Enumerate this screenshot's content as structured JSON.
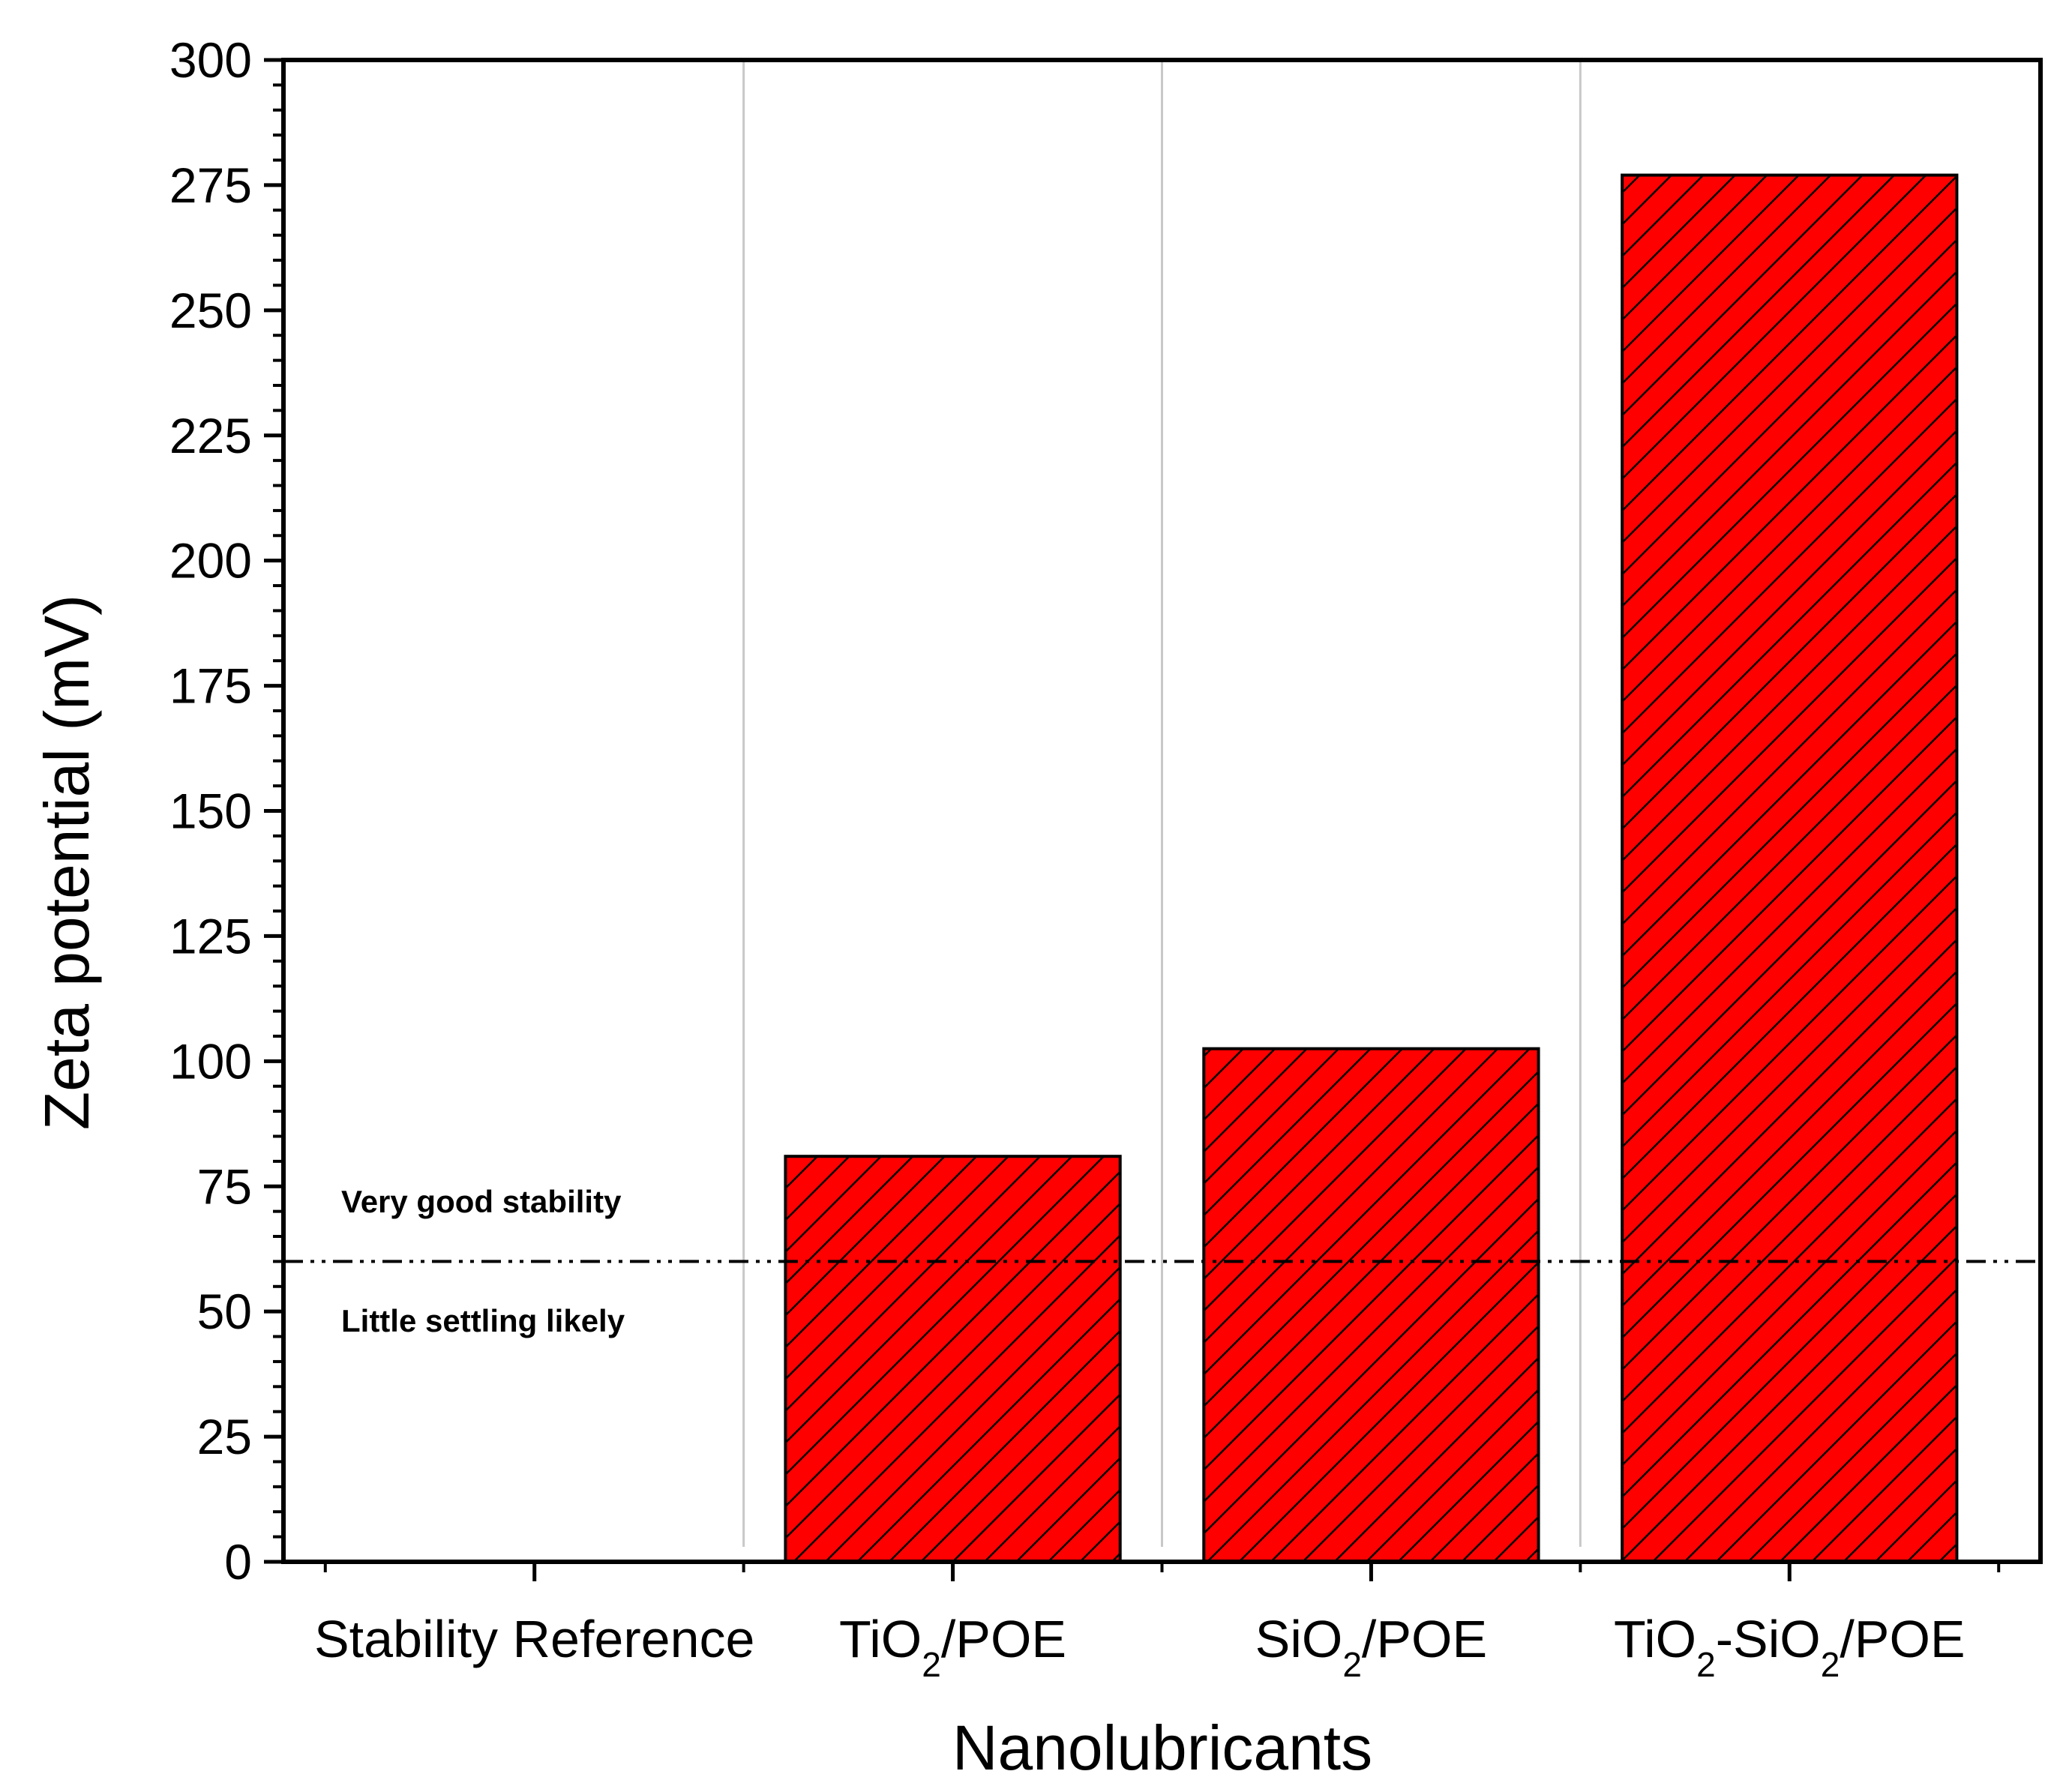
{
  "chart_data": {
    "type": "bar",
    "xlabel": "Nanolubricants",
    "ylabel": "Zeta potential (mV)",
    "ylim": [
      0,
      300
    ],
    "y_major_ticks": [
      0,
      25,
      50,
      75,
      100,
      125,
      150,
      175,
      200,
      225,
      250,
      275,
      300
    ],
    "y_minor_step": 5,
    "categories": [
      {
        "id": "ref",
        "parts": [
          {
            "t": "Stability Reference",
            "sub": false
          }
        ]
      },
      {
        "id": "tio2",
        "parts": [
          {
            "t": "TiO",
            "sub": false
          },
          {
            "t": "2",
            "sub": true
          },
          {
            "t": "/POE",
            "sub": false
          }
        ]
      },
      {
        "id": "sio2",
        "parts": [
          {
            "t": "SiO",
            "sub": false
          },
          {
            "t": "2",
            "sub": true
          },
          {
            "t": "/POE",
            "sub": false
          }
        ]
      },
      {
        "id": "tio2-sio2",
        "parts": [
          {
            "t": "TiO",
            "sub": false
          },
          {
            "t": "2",
            "sub": true
          },
          {
            "t": "-SiO",
            "sub": false
          },
          {
            "t": "2",
            "sub": true
          },
          {
            "t": "/POE",
            "sub": false
          }
        ]
      }
    ],
    "values": [
      null,
      81,
      102.5,
      277
    ],
    "bar_color": "#ff0000",
    "bar_hatch": "diagonal",
    "reference_line": {
      "value": 60,
      "style": "dash-dot-dot"
    },
    "annotations": {
      "above": "Very good stability",
      "below": "Little settling likely"
    },
    "grid": false,
    "legend": "none"
  }
}
